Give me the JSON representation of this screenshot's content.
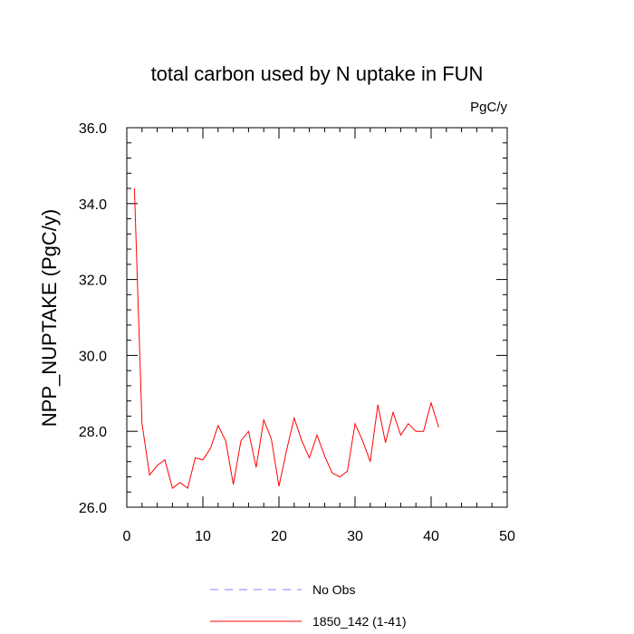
{
  "chart_data": {
    "type": "line",
    "title": "total carbon used by N uptake in FUN",
    "units": "PgC/y",
    "xlabel": "",
    "ylabel": "NPP_NUPTAKE  (PgC/y)",
    "xlim": [
      0,
      50
    ],
    "ylim": [
      26.0,
      36.0
    ],
    "x_ticks": [
      0,
      10,
      20,
      30,
      40,
      50
    ],
    "x_tick_labels": [
      "0",
      "10",
      "20",
      "30",
      "40",
      "50"
    ],
    "y_ticks": [
      26.0,
      28.0,
      30.0,
      32.0,
      34.0,
      36.0
    ],
    "y_tick_labels": [
      "26.0",
      "28.0",
      "30.0",
      "32.0",
      "34.0",
      "36.0"
    ],
    "grid": false,
    "legend_position": "bottom",
    "series": [
      {
        "name": "No Obs",
        "color": "#8080ff",
        "dash": "dashed",
        "x": [],
        "values": []
      },
      {
        "name": "1850_142 (1-41)",
        "color": "#ff0000",
        "dash": "solid",
        "x": [
          1,
          2,
          3,
          4,
          5,
          6,
          7,
          8,
          9,
          10,
          11,
          12,
          13,
          14,
          15,
          16,
          17,
          18,
          19,
          20,
          21,
          22,
          23,
          24,
          25,
          26,
          27,
          28,
          29,
          30,
          31,
          32,
          33,
          34,
          35,
          36,
          37,
          38,
          39,
          40,
          41
        ],
        "values": [
          34.4,
          28.2,
          26.85,
          27.1,
          27.25,
          26.5,
          26.65,
          26.5,
          27.3,
          27.25,
          27.55,
          28.15,
          27.75,
          26.6,
          27.75,
          28.0,
          27.05,
          28.3,
          27.8,
          26.55,
          27.5,
          28.35,
          27.75,
          27.3,
          27.9,
          27.35,
          26.9,
          26.8,
          26.95,
          28.2,
          27.75,
          27.2,
          28.7,
          27.7,
          28.5,
          27.9,
          28.2,
          28.0,
          28.0,
          28.75,
          28.1
        ]
      }
    ]
  }
}
